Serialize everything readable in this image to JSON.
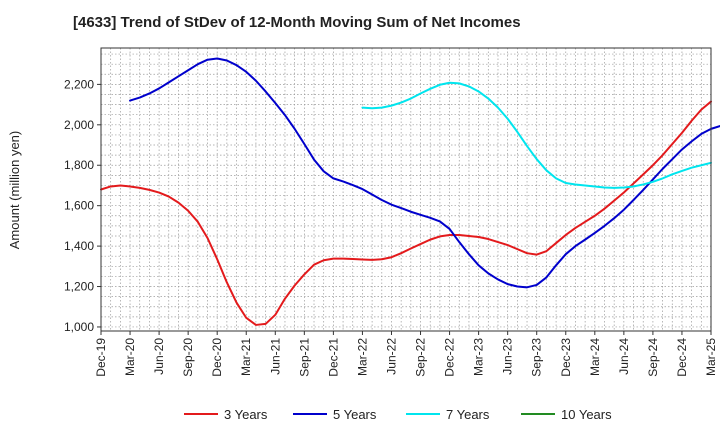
{
  "chart_data": {
    "type": "line",
    "title": "[4633]  Trend of StDev of 12-Month Moving Sum of Net Incomes",
    "ylabel": "Amount (million yen)",
    "xlabel": "",
    "ylim": [
      980,
      2380
    ],
    "yticks": [
      1000,
      1200,
      1400,
      1600,
      1800,
      2000,
      2200
    ],
    "ytick_labels": [
      "1,000",
      "1,200",
      "1,400",
      "1,600",
      "1,800",
      "2,000",
      "2,200"
    ],
    "x_start": "Dec-19",
    "x_tick_labels": [
      "Dec-19",
      "Mar-20",
      "Jun-20",
      "Sep-20",
      "Dec-20",
      "Mar-21",
      "Jun-21",
      "Sep-21",
      "Dec-21",
      "Mar-22",
      "Jun-22",
      "Sep-22",
      "Dec-22",
      "Mar-23",
      "Jun-23",
      "Sep-23",
      "Dec-23",
      "Mar-24",
      "Jun-24",
      "Sep-24",
      "Dec-24",
      "Mar-25"
    ],
    "grid": true,
    "legend_position": "bottom",
    "series": [
      {
        "name": "3 Years",
        "color": "#e31a1c",
        "start": "Dec-19",
        "values": [
          1680,
          1695,
          1700,
          1695,
          1688,
          1678,
          1665,
          1645,
          1615,
          1575,
          1520,
          1440,
          1335,
          1220,
          1120,
          1045,
          1010,
          1015,
          1060,
          1140,
          1205,
          1260,
          1308,
          1330,
          1338,
          1338,
          1336,
          1334,
          1332,
          1335,
          1345,
          1365,
          1388,
          1410,
          1432,
          1448,
          1455,
          1455,
          1450,
          1445,
          1435,
          1420,
          1405,
          1385,
          1365,
          1358,
          1375,
          1415,
          1455,
          1490,
          1520,
          1550,
          1585,
          1625,
          1665,
          1710,
          1755,
          1800,
          1850,
          1905,
          1960,
          2020,
          2075,
          2115
        ]
      },
      {
        "name": "5 Years",
        "color": "#0000cc",
        "start": "Mar-20",
        "values": [
          2120,
          2135,
          2155,
          2180,
          2210,
          2240,
          2270,
          2300,
          2322,
          2328,
          2318,
          2295,
          2262,
          2218,
          2165,
          2108,
          2048,
          1980,
          1905,
          1828,
          1770,
          1735,
          1720,
          1702,
          1682,
          1655,
          1628,
          1605,
          1588,
          1570,
          1555,
          1540,
          1522,
          1485,
          1420,
          1360,
          1305,
          1265,
          1235,
          1212,
          1200,
          1196,
          1208,
          1245,
          1305,
          1360,
          1400,
          1432,
          1465,
          1500,
          1538,
          1580,
          1628,
          1678,
          1730,
          1782,
          1830,
          1878,
          1918,
          1955,
          1980,
          1995
        ]
      },
      {
        "name": "7 Years",
        "color": "#00e5ee",
        "start": "Mar-22",
        "values": [
          2085,
          2082,
          2085,
          2095,
          2110,
          2130,
          2155,
          2178,
          2198,
          2208,
          2205,
          2190,
          2165,
          2130,
          2085,
          2030,
          1965,
          1895,
          1830,
          1775,
          1735,
          1712,
          1705,
          1700,
          1695,
          1690,
          1688,
          1690,
          1695,
          1705,
          1718,
          1735,
          1755,
          1772,
          1788,
          1800,
          1812
        ]
      },
      {
        "name": "10 Years",
        "color": "#228b22",
        "start": "Dec-24",
        "values": []
      }
    ]
  }
}
